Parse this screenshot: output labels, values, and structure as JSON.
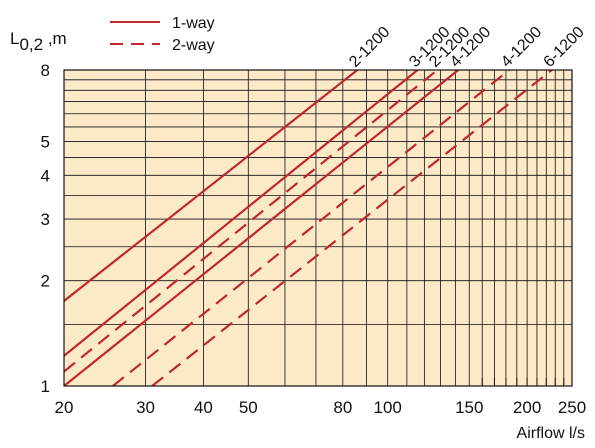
{
  "chart_data": {
    "type": "line",
    "x_scale": "log",
    "y_scale": "log",
    "xlim": [
      20,
      250
    ],
    "ylim": [
      1,
      8
    ],
    "x_ticks": [
      20,
      30,
      40,
      50,
      80,
      100,
      150,
      200,
      250
    ],
    "x_tick_labels": [
      "20",
      "30",
      "40",
      "50",
      "80",
      "100",
      "150",
      "200",
      "250"
    ],
    "y_ticks": [
      1,
      2,
      3,
      4,
      5,
      8
    ],
    "y_tick_labels": [
      "1",
      "2",
      "3",
      "4",
      "5",
      "8"
    ],
    "ylabel_main": "L",
    "ylabel_sub": "0,2",
    "ylabel_unit": " ,m",
    "xlabel": "Airflow l/s",
    "grid": true,
    "background": "#fbe9c8",
    "line_color": "#c0282d",
    "legend": {
      "placement": "top-left",
      "entries": [
        {
          "label": "1-way",
          "style": "solid"
        },
        {
          "label": "2-way",
          "style": "dashed"
        }
      ]
    },
    "series": [
      {
        "name": "2-1200",
        "style": "solid",
        "points": [
          [
            20,
            1.75
          ],
          [
            86,
            8
          ]
        ]
      },
      {
        "name": "3-1200",
        "style": "solid",
        "points": [
          [
            20,
            1.22
          ],
          [
            116,
            8
          ]
        ]
      },
      {
        "name": "2-1200",
        "style": "dashed",
        "points": [
          [
            20,
            1.1
          ],
          [
            128,
            8
          ]
        ]
      },
      {
        "name": "4-1200",
        "style": "solid",
        "points": [
          [
            20,
            1.0
          ],
          [
            142,
            8
          ]
        ]
      },
      {
        "name": "4-1200",
        "style": "dashed",
        "points": [
          [
            25.5,
            1.0
          ],
          [
            183,
            8
          ]
        ]
      },
      {
        "name": "6-1200",
        "style": "dashed",
        "points": [
          [
            31,
            1.0
          ],
          [
            226,
            8
          ]
        ]
      }
    ]
  }
}
